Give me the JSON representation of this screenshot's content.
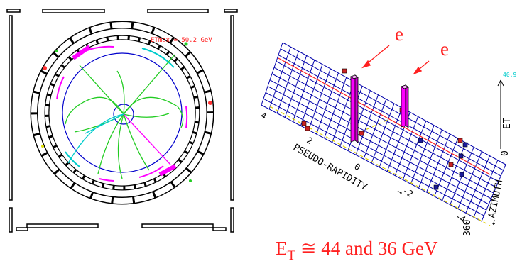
{
  "left_view": {
    "etmax_label": "ETmax = 50.2 GeV"
  },
  "right_view": {
    "electron_labels": [
      "e",
      "e"
    ],
    "axis_pseudo_rapidity": "PSEUDO-RAPIDITY",
    "axis_azimuth": "AZIMUTH",
    "axis_et": "ET",
    "scale_value": "40.9",
    "eta_ticks": [
      "4",
      "2",
      "0",
      "-2",
      "-4"
    ],
    "phi_ticks": [
      "0",
      "360"
    ]
  },
  "caption": {
    "prefix": "E",
    "subscript": "T",
    "text": " ≅ 44 and 36 GeV"
  },
  "colors": {
    "detector": "#000000",
    "tracks": "#22cc22",
    "track_highlight": "#ff00ff",
    "calorimeter_ring": "#0000cc",
    "tower": "#ff00ff",
    "grid": "#0000aa",
    "annotation": "#ff2020",
    "scale": "#00cccc"
  }
}
